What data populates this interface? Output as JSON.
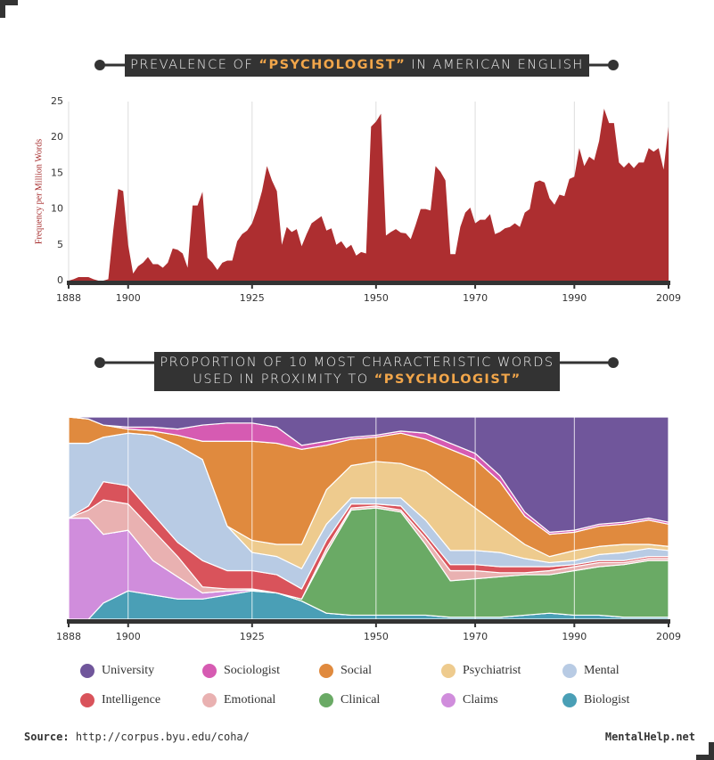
{
  "chart_data": [
    {
      "type": "area",
      "title": [
        "PREVALENCE OF",
        "“PSYCHOLOGIST”",
        "IN AMERICAN ENGLISH"
      ],
      "y_label": "Frequency per Million Words",
      "color": "#ad2e30",
      "x": [
        1888,
        1889,
        1890,
        1891,
        1892,
        1893,
        1894,
        1895,
        1896,
        1897,
        1898,
        1899,
        1900,
        1901,
        1902,
        1903,
        1904,
        1905,
        1906,
        1907,
        1908,
        1909,
        1910,
        1911,
        1912,
        1913,
        1914,
        1915,
        1916,
        1917,
        1918,
        1919,
        1920,
        1921,
        1922,
        1923,
        1924,
        1925,
        1926,
        1927,
        1928,
        1929,
        1930,
        1931,
        1932,
        1933,
        1934,
        1935,
        1936,
        1937,
        1938,
        1939,
        1940,
        1941,
        1942,
        1943,
        1944,
        1945,
        1946,
        1947,
        1948,
        1949,
        1950,
        1951,
        1952,
        1953,
        1954,
        1955,
        1956,
        1957,
        1958,
        1959,
        1960,
        1961,
        1962,
        1963,
        1964,
        1965,
        1966,
        1967,
        1968,
        1969,
        1970,
        1971,
        1972,
        1973,
        1974,
        1975,
        1976,
        1977,
        1978,
        1979,
        1980,
        1981,
        1982,
        1983,
        1984,
        1985,
        1986,
        1987,
        1988,
        1989,
        1990,
        1991,
        1992,
        1993,
        1994,
        1995,
        1996,
        1997,
        1998,
        1999,
        2000,
        2001,
        2002,
        2003,
        2004,
        2005,
        2006,
        2007,
        2008,
        2009
      ],
      "values": [
        0,
        0.2,
        0.5,
        0.5,
        0.5,
        0.2,
        0,
        0,
        0.2,
        7,
        12.8,
        12.5,
        5,
        1,
        2,
        2.5,
        3.3,
        2.3,
        2.3,
        1.8,
        2.5,
        4.5,
        4.3,
        3.8,
        1.8,
        10.5,
        10.5,
        12.4,
        3.2,
        2.5,
        1.5,
        2.5,
        2.8,
        2.8,
        5.5,
        6.5,
        7,
        8,
        10,
        12.5,
        16,
        14,
        12.5,
        5,
        7.5,
        6.8,
        7.2,
        4.8,
        6.5,
        8,
        8.5,
        9,
        7,
        7.3,
        5,
        5.5,
        4.5,
        5,
        3.5,
        4,
        3.8,
        21.5,
        22.2,
        23.3,
        6.3,
        6.8,
        7.2,
        6.7,
        6.6,
        5.8,
        7.8,
        10,
        10,
        9.8,
        16,
        15.2,
        14,
        3.7,
        3.7,
        7.5,
        9.5,
        10.2,
        8,
        8.5,
        8.5,
        9.3,
        6.5,
        6.8,
        7.3,
        7.5,
        8,
        7.5,
        9.5,
        10,
        13.7,
        14,
        13.7,
        11.5,
        10.6,
        12,
        11.8,
        14.2,
        14.5,
        18.5,
        16,
        17.3,
        16.8,
        19.5,
        24,
        22,
        22,
        16.5,
        15.8,
        16.5,
        15.7,
        16.5,
        16.5,
        18.5,
        18,
        18.5,
        15.5,
        21.5
      ],
      "xlim": [
        1888,
        2009
      ],
      "xticks": [
        1888,
        1900,
        1925,
        1950,
        1970,
        1990,
        2009
      ],
      "ylim": [
        0,
        25
      ],
      "yticks": [
        0,
        5,
        10,
        15,
        20,
        25
      ],
      "grid": true
    },
    {
      "type": "area",
      "stacked": true,
      "title": [
        "PROPORTION OF 10 MOST CHARACTERISTIC WORDS",
        "USED IN PROXIMITY TO",
        "“PSYCHOLOGIST”"
      ],
      "x": [
        1888,
        1892,
        1895,
        1900,
        1905,
        1910,
        1915,
        1920,
        1925,
        1930,
        1935,
        1940,
        1945,
        1950,
        1955,
        1960,
        1965,
        1970,
        1975,
        1980,
        1985,
        1990,
        1995,
        2000,
        2005,
        2009
      ],
      "xlim": [
        1888,
        2009
      ],
      "xticks": [
        1888,
        1900,
        1925,
        1950,
        1970,
        1990,
        2009
      ],
      "ylim": [
        0,
        100
      ],
      "grid": true,
      "series": [
        {
          "name": "University",
          "color": "#70569b",
          "values": [
            0,
            1,
            4,
            5,
            5,
            6,
            4,
            3,
            3,
            5,
            14,
            12,
            10,
            9,
            7,
            8,
            13,
            18,
            29,
            47,
            57,
            56,
            53,
            52,
            50,
            52
          ]
        },
        {
          "name": "Sociologist",
          "color": "#d65bb2",
          "values": [
            0,
            0,
            0,
            1,
            2,
            3,
            8,
            9,
            9,
            8,
            2,
            2,
            1,
            1,
            1,
            3,
            3,
            3,
            3,
            2,
            1,
            1,
            1,
            1,
            1,
            1
          ]
        },
        {
          "name": "Social",
          "color": "#e08a3e",
          "values": [
            13,
            12,
            6,
            2,
            2,
            5,
            9,
            42,
            49,
            50,
            47,
            22,
            13,
            12,
            15,
            16,
            20,
            24,
            22,
            14,
            11,
            9,
            10,
            10,
            12,
            11
          ]
        },
        {
          "name": "Psychiatrist",
          "color": "#eecb8e",
          "values": [
            0,
            0,
            0,
            0,
            0,
            0,
            0,
            0,
            6,
            6,
            12,
            17,
            16,
            18,
            17,
            24,
            30,
            21,
            13,
            7,
            3,
            5,
            4,
            4,
            2,
            2
          ]
        },
        {
          "name": "Mental",
          "color": "#b8cbe4",
          "values": [
            37,
            31,
            22,
            26,
            39,
            48,
            50,
            22,
            9,
            9,
            10,
            8,
            3,
            3,
            4,
            7,
            7,
            7,
            7,
            4,
            2,
            2,
            3,
            4,
            4,
            3
          ]
        },
        {
          "name": "Intelligence",
          "color": "#d9535b",
          "values": [
            0,
            2,
            9,
            9,
            8,
            7,
            13,
            9,
            9,
            9,
            5,
            4,
            2,
            1,
            2,
            2,
            3,
            3,
            3,
            3,
            2,
            1,
            1,
            1,
            1,
            1
          ]
        },
        {
          "name": "Emotional",
          "color": "#e9b1b1",
          "values": [
            0,
            4,
            17,
            13,
            15,
            10,
            3,
            1,
            0.5,
            0,
            0,
            2,
            1,
            1,
            1,
            3,
            5,
            4,
            2,
            1,
            2,
            2,
            2,
            1,
            1,
            1
          ]
        },
        {
          "name": "Clinical",
          "color": "#6aaa65",
          "values": [
            0,
            0,
            0,
            0,
            0,
            0,
            0,
            0,
            0,
            0,
            1,
            30,
            52,
            53,
            51,
            35,
            18,
            19,
            20,
            20,
            19,
            22,
            24,
            26,
            28,
            28
          ]
        },
        {
          "name": "Claims",
          "color": "#d08ddc",
          "values": [
            50,
            50,
            34,
            30,
            17,
            11,
            3,
            2,
            0.5,
            0,
            0,
            0,
            0,
            0,
            0,
            0,
            0,
            0,
            0,
            0,
            0,
            0,
            0,
            0,
            0,
            0
          ]
        },
        {
          "name": "Biologist",
          "color": "#4a9fb6",
          "values": [
            0,
            0,
            8,
            14,
            12,
            10,
            10,
            12,
            14,
            13,
            9,
            3,
            2,
            2,
            2,
            2,
            1,
            1,
            1,
            2,
            3,
            2,
            2,
            1,
            1,
            1
          ]
        }
      ]
    }
  ],
  "footer": {
    "source_label": "Source:",
    "source_url": "http://corpus.byu.edu/coha/",
    "brand": "MentalHelp.net"
  }
}
